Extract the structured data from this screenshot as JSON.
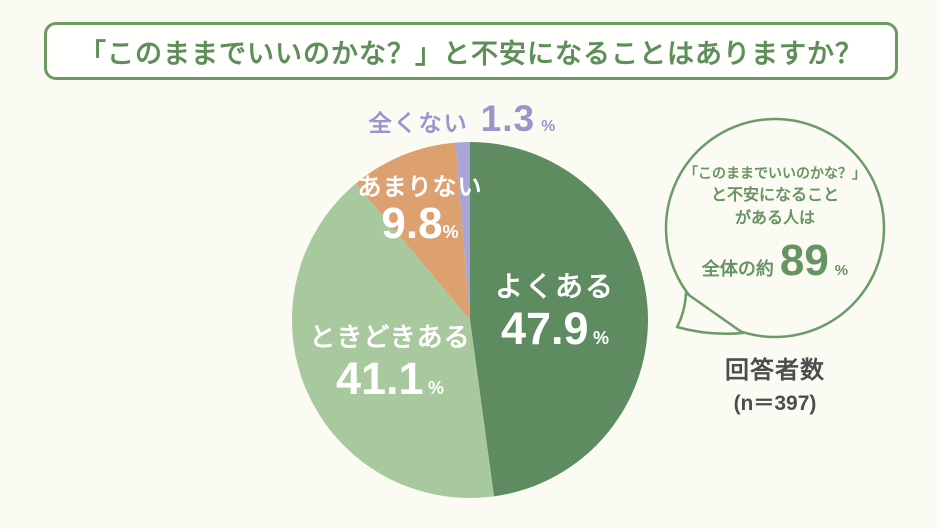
{
  "title": {
    "text": "「このままでいいのかな？」と不安になることはありますか？"
  },
  "chart_data": {
    "type": "pie",
    "title": "「このままでいいのかな？」と不安になることはありますか？",
    "categories": [
      "よくある",
      "ときどきある",
      "あまりない",
      "全くない"
    ],
    "values": [
      47.9,
      41.1,
      9.8,
      1.3
    ],
    "unit": "%",
    "colors": [
      "#5e8b60",
      "#a8c89e",
      "#dda06f",
      "#a9a5d6"
    ],
    "start_angle": "12-oclock",
    "direction": "clockwise",
    "legend_position": "none",
    "labels_on_slices": true,
    "n": 397
  },
  "bubble": {
    "line1": "「このままでいいのかな？」",
    "line2": "と不安になること",
    "line3": "がある人は",
    "stat_prefix": "全体の約",
    "stat_value": "89",
    "stat_unit": "%"
  },
  "respondents": {
    "label": "回答者数",
    "count": "(n＝397)"
  },
  "colors": {
    "background": "#fbfbf3",
    "title_green": "#5f8e5b",
    "border_green": "#6b9a63",
    "bubble_green": "#679463",
    "outside_label_purple": "#9a96cb",
    "respondents_gray": "#4d4d4d"
  }
}
